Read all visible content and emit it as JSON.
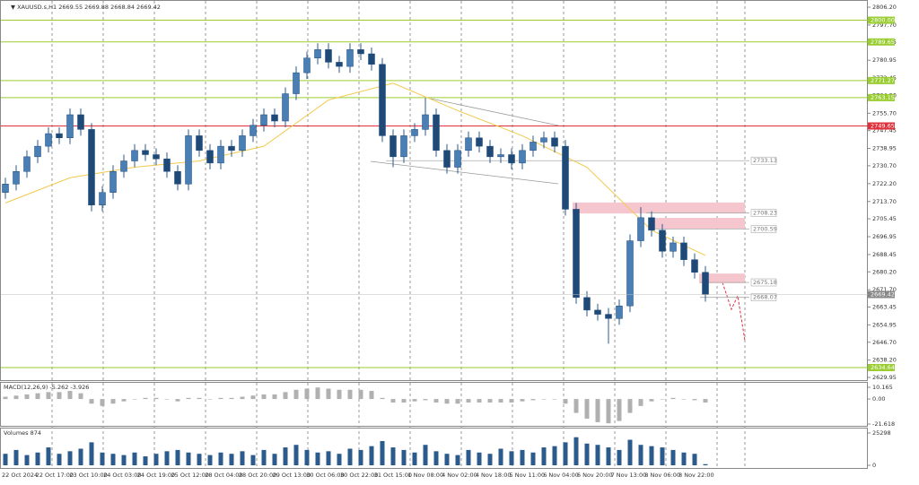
{
  "header": "▼ XAUUSD.s,H1 2669.55 2669.88 2668.84 2669.42",
  "chart_data": {
    "type": "candlestick",
    "open": [
      2718,
      2722,
      2728,
      2735,
      2740,
      2746,
      2744,
      2755,
      2748,
      2712,
      2718,
      2728,
      2733,
      2738,
      2736,
      2734,
      2728,
      2722,
      2745,
      2738,
      2732,
      2740,
      2738,
      2745,
      2750,
      2755,
      2752,
      2765,
      2775,
      2782,
      2786,
      2780,
      2778,
      2786,
      2784,
      2779,
      2745,
      2735,
      2745,
      2748,
      2755,
      2738,
      2730,
      2738,
      2744,
      2740,
      2735,
      2736,
      2732,
      2738,
      2742,
      2744,
      2740,
      2710,
      2668,
      2662,
      2660,
      2658,
      2664,
      2695,
      2706,
      2700,
      2690,
      2694,
      2686,
      2680
    ],
    "high": [
      2725,
      2731,
      2738,
      2743,
      2749,
      2749,
      2758,
      2758,
      2751,
      2721,
      2731,
      2736,
      2741,
      2741,
      2739,
      2737,
      2731,
      2748,
      2748,
      2741,
      2743,
      2743,
      2748,
      2753,
      2758,
      2758,
      2768,
      2778,
      2785,
      2789,
      2789,
      2783,
      2789,
      2789,
      2787,
      2782,
      2748,
      2748,
      2751,
      2763,
      2758,
      2741,
      2741,
      2747,
      2747,
      2743,
      2739,
      2739,
      2741,
      2745,
      2747,
      2747,
      2743,
      2713,
      2671,
      2665,
      2663,
      2667,
      2698,
      2711,
      2709,
      2703,
      2697,
      2697,
      2689,
      2683
    ],
    "low": [
      2715,
      2719,
      2725,
      2732,
      2737,
      2741,
      2741,
      2745,
      2709,
      2709,
      2715,
      2725,
      2730,
      2733,
      2731,
      2725,
      2719,
      2719,
      2735,
      2729,
      2729,
      2735,
      2735,
      2742,
      2747,
      2749,
      2749,
      2762,
      2772,
      2779,
      2777,
      2775,
      2775,
      2781,
      2776,
      2742,
      2730,
      2732,
      2742,
      2745,
      2735,
      2727,
      2727,
      2735,
      2737,
      2732,
      2732,
      2729,
      2729,
      2735,
      2739,
      2737,
      2707,
      2665,
      2659,
      2657,
      2646,
      2655,
      2661,
      2692,
      2697,
      2687,
      2687,
      2683,
      2677,
      2666
    ],
    "close": [
      2722,
      2728,
      2735,
      2740,
      2746,
      2744,
      2755,
      2748,
      2712,
      2718,
      2728,
      2733,
      2738,
      2736,
      2734,
      2728,
      2722,
      2745,
      2738,
      2732,
      2740,
      2738,
      2745,
      2750,
      2755,
      2752,
      2765,
      2775,
      2782,
      2786,
      2780,
      2778,
      2786,
      2784,
      2779,
      2745,
      2735,
      2745,
      2748,
      2755,
      2738,
      2730,
      2738,
      2744,
      2740,
      2735,
      2736,
      2732,
      2738,
      2742,
      2744,
      2740,
      2710,
      2668,
      2662,
      2660,
      2658,
      2664,
      2695,
      2706,
      2700,
      2690,
      2694,
      2686,
      2680,
      2669.42
    ],
    "ylim": [
      2629.95,
      2806.2
    ],
    "yticks": [
      {
        "value": 2806.2,
        "label": "2806.20"
      },
      {
        "value": 2797.7,
        "label": "2797.70"
      },
      2789.45,
      2780.95,
      2772.45,
      {
        "value": 2764.2,
        "label": "2764.20"
      },
      {
        "value": 2755.7,
        "label": "2755.70"
      },
      2747.45,
      2738.95,
      {
        "value": 2730.7,
        "label": "2730.70"
      },
      {
        "value": 2722.2,
        "label": "2722.20"
      },
      {
        "value": 2713.7,
        "label": "2713.70"
      },
      2705.45,
      2696.95,
      2688.45,
      {
        "value": 2680.2,
        "label": "2680.20"
      },
      {
        "value": 2671.7,
        "label": "2671.70"
      },
      2663.45,
      2654.95,
      {
        "value": 2646.7,
        "label": "2646.70"
      },
      {
        "value": 2638.2,
        "label": "2638.20"
      },
      2629.95
    ],
    "ma": {
      "color": "#f2c94c",
      "index": [
        0,
        6,
        12,
        18,
        24,
        30,
        36,
        42,
        48,
        54,
        60,
        65
      ],
      "values": [
        2713,
        2725,
        2730,
        2733,
        2740,
        2762,
        2770,
        2757,
        2745,
        2730,
        2700,
        2688
      ]
    },
    "levels": [
      {
        "value": 2800,
        "label": "2800.00",
        "color": "#9acd32"
      },
      {
        "value": 2789.65,
        "color": "#9acd32"
      },
      {
        "value": 2771.27,
        "color": "#9acd32"
      },
      {
        "value": 2763.15,
        "color": "#9acd32"
      },
      {
        "value": 2749.65,
        "color": "#e0303a"
      },
      {
        "value": 2634.64,
        "color": "#9acd32"
      }
    ],
    "lines": [
      2733.13,
      2708.23,
      2700.59,
      2675.18,
      2668.07
    ],
    "zones": [
      [
        2713.2,
        2708.0
      ],
      [
        2705.9,
        2700.8
      ],
      [
        2679.4,
        2674.8
      ]
    ],
    "zone_color": "#f6c6cf"
  },
  "macd": {
    "label": "MACD(12,26,9) -5.262 -3.926",
    "ylim": [
      -21.618,
      10.165
    ],
    "yticks": [
      10.165,
      {
        "value": 0,
        "label": "0.00"
      },
      -21.618
    ],
    "color": "#b0b0b0",
    "values": [
      2,
      3,
      4,
      5,
      6,
      6,
      7,
      5,
      -4,
      -6,
      -4,
      -2,
      0,
      1,
      1,
      0,
      -2,
      1,
      1,
      0,
      1,
      1,
      2,
      3,
      4,
      4,
      6,
      8,
      9,
      10,
      9,
      8,
      8,
      8,
      7,
      1,
      -3,
      -3,
      -2,
      -1,
      -3,
      -4,
      -4,
      -3,
      -3,
      -3,
      -3,
      -3,
      -2,
      -1,
      0,
      0,
      -4,
      -12,
      -17,
      -20,
      -21,
      -19,
      -12,
      -6,
      -2,
      0,
      1,
      0,
      -1,
      -3
    ]
  },
  "volumes": {
    "label": "Volumes 874",
    "ylim": [
      0,
      25298
    ],
    "yticks": [
      25298,
      0
    ],
    "color": "#2b5a8c",
    "values": [
      9000,
      12000,
      8000,
      10000,
      14000,
      9000,
      11000,
      13000,
      18000,
      10000,
      9000,
      8000,
      10000,
      7000,
      9000,
      11000,
      12000,
      10000,
      9000,
      8000,
      10000,
      9000,
      11000,
      8000,
      12000,
      9000,
      14000,
      16000,
      12000,
      10000,
      11000,
      9000,
      13000,
      12000,
      15000,
      19000,
      14000,
      12000,
      10000,
      16000,
      11000,
      9000,
      8000,
      12000,
      10000,
      9000,
      13000,
      11000,
      12000,
      10000,
      14000,
      15000,
      18000,
      22000,
      17000,
      16000,
      14000,
      12000,
      20000,
      16000,
      15000,
      14000,
      12000,
      10000,
      9000,
      874
    ]
  },
  "x_labels": [
    "22 Oct 2024",
    "22 Oct 17:00",
    "23 Oct 10:00",
    "24 Oct 03:00",
    "24 Oct 19:00",
    "25 Oct 12:00",
    "28 Oct 04:00",
    "28 Oct 20:00",
    "29 Oct 13:00",
    "30 Oct 06:00",
    "30 Oct 22:00",
    "31 Oct 15:00",
    "1 Nov 08:00",
    "4 Nov 02:00",
    "4 Nov 18:00",
    "5 Nov 11:00",
    "6 Nov 04:00",
    "6 Nov 20:00",
    "7 Nov 13:00",
    "8 Nov 06:00",
    "8 Nov 22:00"
  ]
}
